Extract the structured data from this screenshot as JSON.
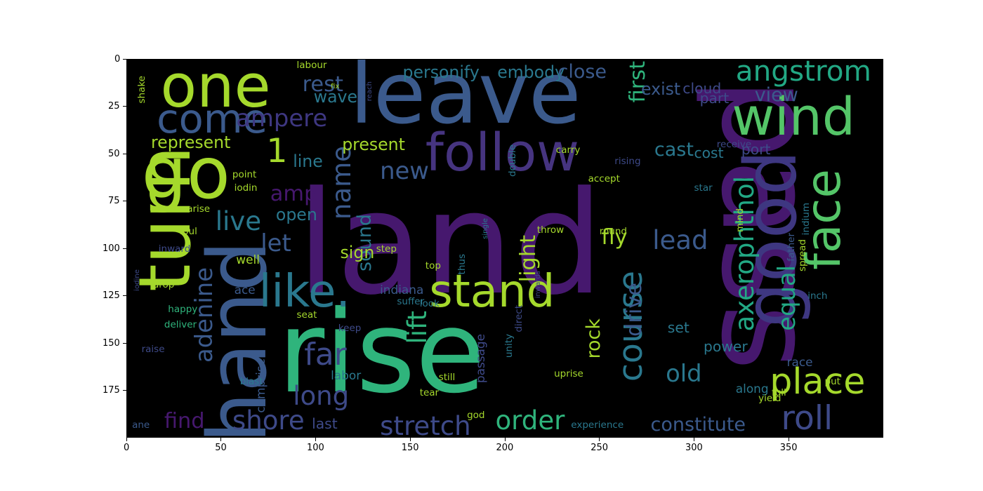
{
  "chart_data": {
    "type": "image",
    "subtype": "wordcloud",
    "background": "#000000",
    "xlim": [
      0,
      400
    ],
    "ylim": [
      200,
      0
    ],
    "xticks": [
      0,
      50,
      100,
      150,
      200,
      250,
      300,
      350
    ],
    "yticks": [
      0,
      25,
      50,
      75,
      100,
      125,
      150,
      175
    ],
    "colormap": "viridis",
    "words": [
      {
        "text": "land",
        "x": 90,
        "y": 60,
        "size": 60,
        "color": "#46186e",
        "rot": 0
      },
      {
        "text": "pass",
        "x": 305,
        "y": 10,
        "size": 54,
        "color": "#46186e",
        "rot": 90
      },
      {
        "text": "rise",
        "x": 80,
        "y": 125,
        "size": 48,
        "color": "#2fb47c",
        "rot": 0
      },
      {
        "text": "leave",
        "x": 118,
        "y": -4,
        "size": 36,
        "color": "#3b5a8c",
        "rot": 0
      },
      {
        "text": "hand",
        "x": 38,
        "y": 96,
        "size": 34,
        "color": "#3b5a8c",
        "rot": 270
      },
      {
        "text": "turn",
        "x": 2,
        "y": 46,
        "size": 30,
        "color": "#a5d92c",
        "rot": 270
      },
      {
        "text": "go",
        "x": 8,
        "y": 42,
        "size": 30,
        "color": "#a5d92c",
        "rot": 0
      },
      {
        "text": "one",
        "x": 18,
        "y": -1,
        "size": 25,
        "color": "#a5d92c",
        "rot": 0
      },
      {
        "text": "good",
        "x": 322,
        "y": 48,
        "size": 30,
        "color": "#3e3781",
        "rot": 270
      },
      {
        "text": "wind",
        "x": 320,
        "y": 17,
        "size": 22,
        "color": "#54c568",
        "rot": 0
      },
      {
        "text": "follow",
        "x": 158,
        "y": 36,
        "size": 22,
        "color": "#463480",
        "rot": 0
      },
      {
        "text": "face",
        "x": 356,
        "y": 58,
        "size": 20,
        "color": "#54c568",
        "rot": 270
      },
      {
        "text": "stand",
        "x": 160,
        "y": 111,
        "size": 19,
        "color": "#a5d92c",
        "rot": 0
      },
      {
        "text": "like.",
        "x": 70,
        "y": 111,
        "size": 19,
        "color": "#2a788e",
        "rot": 0
      },
      {
        "text": "come",
        "x": 16,
        "y": 21,
        "size": 17,
        "color": "#3b5a8c",
        "rot": 0
      },
      {
        "text": "place",
        "x": 340,
        "y": 161,
        "size": 15,
        "color": "#a5d92c",
        "rot": 0
      },
      {
        "text": "course",
        "x": 258,
        "y": 112,
        "size": 14,
        "color": "#2a788e",
        "rot": 270
      },
      {
        "text": "roll",
        "x": 346,
        "y": 181,
        "size": 14,
        "color": "#3e4a89",
        "rot": 0
      },
      {
        "text": "angstrom",
        "x": 322,
        "y": -1,
        "size": 12,
        "color": "#22a884",
        "rot": 0
      },
      {
        "text": "axerophthol",
        "x": 320,
        "y": 62,
        "size": 11,
        "color": "#22a884",
        "rot": 270
      },
      {
        "text": "stretch",
        "x": 134,
        "y": 187,
        "size": 11,
        "color": "#3e4a89",
        "rot": 0
      },
      {
        "text": "far",
        "x": 94,
        "y": 148,
        "size": 13,
        "color": "#3e4a89",
        "rot": 0
      },
      {
        "text": "long",
        "x": 88,
        "y": 171,
        "size": 11,
        "color": "#3e4a89",
        "rot": 0
      },
      {
        "text": "name",
        "x": 107,
        "y": 46,
        "size": 11,
        "color": "#3b5a8c",
        "rot": 270
      },
      {
        "text": "adenine",
        "x": 35,
        "y": 110,
        "size": 10,
        "color": "#3b5a8c",
        "rot": 270
      },
      {
        "text": "ampere",
        "x": 58,
        "y": 25,
        "size": 10,
        "color": "#3e3781",
        "rot": 0
      },
      {
        "text": "1",
        "x": 74,
        "y": 40,
        "size": 14,
        "color": "#a5d92c",
        "rot": 0
      },
      {
        "text": "live",
        "x": 47,
        "y": 79,
        "size": 11,
        "color": "#2a788e",
        "rot": 0
      },
      {
        "text": "amp",
        "x": 76,
        "y": 66,
        "size": 9,
        "color": "#46186e",
        "rot": 0
      },
      {
        "text": "let",
        "x": 71,
        "y": 91,
        "size": 10,
        "color": "#3b5a8c",
        "rot": 0
      },
      {
        "text": "lead",
        "x": 278,
        "y": 89,
        "size": 11,
        "color": "#3b5a8c",
        "rot": 0
      },
      {
        "text": "lift",
        "x": 147,
        "y": 133,
        "size": 11,
        "color": "#2fb47c",
        "rot": 270
      },
      {
        "text": "order",
        "x": 195,
        "y": 184,
        "size": 11,
        "color": "#2fb47c",
        "rot": 0
      },
      {
        "text": "shore",
        "x": 56,
        "y": 184,
        "size": 11,
        "color": "#3e4a89",
        "rot": 0
      },
      {
        "text": "find",
        "x": 20,
        "y": 186,
        "size": 9,
        "color": "#46186e",
        "rot": 0
      },
      {
        "text": "new",
        "x": 134,
        "y": 53,
        "size": 10,
        "color": "#3b5a8c",
        "rot": 0
      },
      {
        "text": "rest",
        "x": 93,
        "y": 8,
        "size": 9,
        "color": "#3b5a8c",
        "rot": 0
      },
      {
        "text": "wave",
        "x": 99,
        "y": 16,
        "size": 7,
        "color": "#2a788e",
        "rot": 0
      },
      {
        "text": "constitute",
        "x": 277,
        "y": 188,
        "size": 8,
        "color": "#3b5a8c",
        "rot": 0
      },
      {
        "text": "equal",
        "x": 343,
        "y": 109,
        "size": 10,
        "color": "#22a884",
        "rot": 270
      },
      {
        "text": "old",
        "x": 285,
        "y": 160,
        "size": 10,
        "color": "#2a788e",
        "rot": 0
      },
      {
        "text": "cast",
        "x": 279,
        "y": 43,
        "size": 8,
        "color": "#2a788e",
        "rot": 0
      },
      {
        "text": "view",
        "x": 332,
        "y": 14,
        "size": 8,
        "color": "#3b5a8c",
        "rot": 0
      },
      {
        "text": "first",
        "x": 265,
        "y": 1,
        "size": 9,
        "color": "#2fb47c",
        "rot": 270
      },
      {
        "text": "drive",
        "x": 263,
        "y": 118,
        "size": 9,
        "color": "#3b5a8c",
        "rot": 270
      },
      {
        "text": "light",
        "x": 207,
        "y": 93,
        "size": 9,
        "color": "#a5d92c",
        "rot": 270
      },
      {
        "text": "fly",
        "x": 251,
        "y": 89,
        "size": 9,
        "color": "#a5d92c",
        "rot": 0
      },
      {
        "text": "rock",
        "x": 242,
        "y": 137,
        "size": 8,
        "color": "#a5d92c",
        "rot": 270
      },
      {
        "text": "sound",
        "x": 121,
        "y": 82,
        "size": 8,
        "color": "#2a788e",
        "rot": 270
      },
      {
        "text": "personify",
        "x": 146,
        "y": 3,
        "size": 7,
        "color": "#2a788e",
        "rot": 0
      },
      {
        "text": "embody",
        "x": 196,
        "y": 3,
        "size": 7,
        "color": "#2a788e",
        "rot": 0
      },
      {
        "text": "close",
        "x": 228,
        "y": 2,
        "size": 8,
        "color": "#3b5a8c",
        "rot": 0
      },
      {
        "text": "exist",
        "x": 272,
        "y": 12,
        "size": 7,
        "color": "#3b5a8c",
        "rot": 0
      },
      {
        "text": "cloud",
        "x": 294,
        "y": 12,
        "size": 6,
        "color": "#3e4a89",
        "rot": 0
      },
      {
        "text": "represent",
        "x": 13,
        "y": 40,
        "size": 7,
        "color": "#a5d92c",
        "rot": 0
      },
      {
        "text": "present",
        "x": 114,
        "y": 41,
        "size": 7,
        "color": "#a5d92c",
        "rot": 0
      },
      {
        "text": "line",
        "x": 88,
        "y": 50,
        "size": 7,
        "color": "#2a788e",
        "rot": 0
      },
      {
        "text": "open",
        "x": 79,
        "y": 78,
        "size": 7,
        "color": "#2a788e",
        "rot": 0
      },
      {
        "text": "sign",
        "x": 113,
        "y": 98,
        "size": 7,
        "color": "#a5d92c",
        "rot": 0
      },
      {
        "text": "cost",
        "x": 300,
        "y": 46,
        "size": 6,
        "color": "#2a788e",
        "rot": 0
      },
      {
        "text": "port",
        "x": 325,
        "y": 44,
        "size": 6,
        "color": "#3e4a89",
        "rot": 0
      },
      {
        "text": "part",
        "x": 303,
        "y": 17,
        "size": 6,
        "color": "#3e4a89",
        "rot": 0
      },
      {
        "text": "set",
        "x": 286,
        "y": 138,
        "size": 6,
        "color": "#2a788e",
        "rot": 0
      },
      {
        "text": "power",
        "x": 305,
        "y": 148,
        "size": 6,
        "color": "#2a788e",
        "rot": 0
      },
      {
        "text": "last",
        "x": 98,
        "y": 189,
        "size": 6,
        "color": "#3e4a89",
        "rot": 0
      },
      {
        "text": "indiana",
        "x": 134,
        "y": 119,
        "size": 5,
        "color": "#3b5a8c",
        "rot": 0
      },
      {
        "text": "comprise",
        "x": 68,
        "y": 158,
        "size": 5,
        "color": "#3b5a8c",
        "rot": 270
      },
      {
        "text": "labor",
        "x": 108,
        "y": 164,
        "size": 5,
        "color": "#2a788e",
        "rot": 0
      },
      {
        "text": "passage",
        "x": 184,
        "y": 145,
        "size": 5,
        "color": "#3e4a89",
        "rot": 270
      },
      {
        "text": "along",
        "x": 322,
        "y": 171,
        "size": 5,
        "color": "#2a788e",
        "rot": 0
      },
      {
        "text": "experience",
        "x": 235,
        "y": 191,
        "size": 4,
        "color": "#2a788e",
        "rot": 0
      },
      {
        "text": "uprise",
        "x": 226,
        "y": 164,
        "size": 4,
        "color": "#a5d92c",
        "rot": 0
      },
      {
        "text": "well",
        "x": 58,
        "y": 103,
        "size": 5,
        "color": "#a5d92c",
        "rot": 0
      },
      {
        "text": "ace",
        "x": 57,
        "y": 119,
        "size": 5,
        "color": "#3b5a8c",
        "rot": 0
      },
      {
        "text": "ane",
        "x": 3,
        "y": 191,
        "size": 4,
        "color": "#3b5a8c",
        "rot": 0
      },
      {
        "text": "inward",
        "x": 17,
        "y": 98,
        "size": 4,
        "color": "#3e4a89",
        "rot": 0
      },
      {
        "text": "drop",
        "x": 14,
        "y": 117,
        "size": 4,
        "color": "#a5d92c",
        "rot": 0
      },
      {
        "text": "raise",
        "x": 8,
        "y": 151,
        "size": 4,
        "color": "#3e4a89",
        "rot": 0
      },
      {
        "text": "foul",
        "x": 28,
        "y": 89,
        "size": 4,
        "color": "#a5d92c",
        "rot": 0
      },
      {
        "text": "arise",
        "x": 32,
        "y": 77,
        "size": 4,
        "color": "#a5d92c",
        "rot": 0
      },
      {
        "text": "blast",
        "x": 60,
        "y": 168,
        "size": 4,
        "color": "#2a788e",
        "rot": 0
      },
      {
        "text": "step",
        "x": 132,
        "y": 98,
        "size": 4,
        "color": "#a5d92c",
        "rot": 0
      },
      {
        "text": "thus",
        "x": 175,
        "y": 103,
        "size": 4,
        "color": "#2a788e",
        "rot": 270
      },
      {
        "text": "throw",
        "x": 217,
        "y": 88,
        "size": 4,
        "color": "#a5d92c",
        "rot": 0
      },
      {
        "text": "keep",
        "x": 112,
        "y": 140,
        "size": 4,
        "color": "#3e4a89",
        "rot": 0
      },
      {
        "text": "still",
        "x": 165,
        "y": 166,
        "size": 4,
        "color": "#a5d92c",
        "rot": 0
      },
      {
        "text": "god",
        "x": 180,
        "y": 186,
        "size": 4,
        "color": "#a5d92c",
        "rot": 0
      },
      {
        "text": "tear",
        "x": 155,
        "y": 174,
        "size": 4,
        "color": "#a5d92c",
        "rot": 0
      },
      {
        "text": "suffer",
        "x": 143,
        "y": 126,
        "size": 4,
        "color": "#2a788e",
        "rot": 0
      },
      {
        "text": "seat",
        "x": 90,
        "y": 133,
        "size": 4,
        "color": "#a5d92c",
        "rot": 0
      },
      {
        "text": "look",
        "x": 155,
        "y": 127,
        "size": 4,
        "color": "#2a788e",
        "rot": 0
      },
      {
        "text": "top",
        "x": 158,
        "y": 107,
        "size": 4,
        "color": "#a5d92c",
        "rot": 0
      },
      {
        "text": "happy",
        "x": 22,
        "y": 130,
        "size": 4,
        "color": "#2fb47c",
        "rot": 0
      },
      {
        "text": "deliver",
        "x": 20,
        "y": 138,
        "size": 4,
        "color": "#2fb47c",
        "rot": 0
      },
      {
        "text": "point",
        "x": 56,
        "y": 59,
        "size": 4,
        "color": "#a5d92c",
        "rot": 0
      },
      {
        "text": "iodin",
        "x": 57,
        "y": 66,
        "size": 4,
        "color": "#a5d92c",
        "rot": 0
      },
      {
        "text": "iodine",
        "x": 4,
        "y": 111,
        "size": 3,
        "color": "#3e4a89",
        "rot": 270
      },
      {
        "text": "indium",
        "x": 357,
        "y": 76,
        "size": 4,
        "color": "#2a788e",
        "rot": 270
      },
      {
        "text": "inch",
        "x": 360,
        "y": 123,
        "size": 4,
        "color": "#2a788e",
        "rot": 0
      },
      {
        "text": "spread",
        "x": 355,
        "y": 95,
        "size": 4,
        "color": "#a5d92c",
        "rot": 270
      },
      {
        "text": "father",
        "x": 349,
        "y": 92,
        "size": 4,
        "color": "#3b5a8c",
        "rot": 270
      },
      {
        "text": "yield",
        "x": 334,
        "y": 177,
        "size": 4,
        "color": "#a5d92c",
        "rot": 0
      },
      {
        "text": "full",
        "x": 341,
        "y": 174,
        "size": 4,
        "color": "#a5d92c",
        "rot": 0
      },
      {
        "text": "race",
        "x": 349,
        "y": 157,
        "size": 5,
        "color": "#3b5a8c",
        "rot": 0
      },
      {
        "text": "put",
        "x": 369,
        "y": 168,
        "size": 4,
        "color": "#a5d92c",
        "rot": 0
      },
      {
        "text": "receive",
        "x": 312,
        "y": 43,
        "size": 4,
        "color": "#3e4a89",
        "rot": 0
      },
      {
        "text": "direct",
        "x": 205,
        "y": 130,
        "size": 4,
        "color": "#3e4a89",
        "rot": 270
      },
      {
        "text": "unity",
        "x": 200,
        "y": 145,
        "size": 4,
        "color": "#2a788e",
        "rot": 270
      },
      {
        "text": "double",
        "x": 202,
        "y": 45,
        "size": 4,
        "color": "#2a788e",
        "rot": 270
      },
      {
        "text": "carry",
        "x": 227,
        "y": 46,
        "size": 4,
        "color": "#a5d92c",
        "rot": 0
      },
      {
        "text": "mind",
        "x": 322,
        "y": 79,
        "size": 4,
        "color": "#a5d92c",
        "rot": 270
      },
      {
        "text": "labour",
        "x": 90,
        "y": 1,
        "size": 4,
        "color": "#a5d92c",
        "rot": 0
      },
      {
        "text": "shake",
        "x": 6,
        "y": 9,
        "size": 4,
        "color": "#a5d92c",
        "rot": 270
      },
      {
        "text": "fix",
        "x": 108,
        "y": 13,
        "size": 3,
        "color": "#a5d92c",
        "rot": 0
      },
      {
        "text": "reach",
        "x": 127,
        "y": 12,
        "size": 3,
        "color": "#3e4a89",
        "rot": 270
      },
      {
        "text": "accept",
        "x": 244,
        "y": 61,
        "size": 4,
        "color": "#a5d92c",
        "rot": 0
      },
      {
        "text": "star",
        "x": 300,
        "y": 66,
        "size": 4,
        "color": "#2a788e",
        "rot": 0
      },
      {
        "text": "rising",
        "x": 258,
        "y": 52,
        "size": 4,
        "color": "#3e4a89",
        "rot": 0
      },
      {
        "text": "round",
        "x": 250,
        "y": 89,
        "size": 4,
        "color": "#a5d92c",
        "rot": 0
      },
      {
        "text": "inwards",
        "x": 216,
        "y": 112,
        "size": 3,
        "color": "#3e4a89",
        "rot": 270
      },
      {
        "text": "single",
        "x": 188,
        "y": 84,
        "size": 3,
        "color": "#2a788e",
        "rot": 270
      }
    ]
  }
}
